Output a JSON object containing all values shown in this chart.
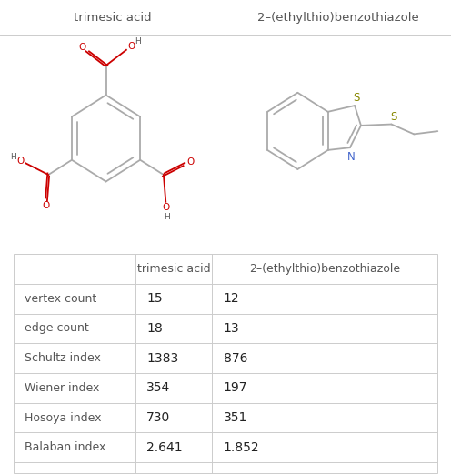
{
  "title_left": "trimesic acid",
  "title_right": "2–(ethylthio)benzothiazole",
  "table_col0": [
    "vertex count",
    "edge count",
    "Schultz index",
    "Wiener index",
    "Hosoya index",
    "Balaban index"
  ],
  "table_col1": [
    "15",
    "18",
    "1383",
    "354",
    "730",
    "2.641"
  ],
  "table_col2": [
    "12",
    "13",
    "876",
    "197",
    "351",
    "1.852"
  ],
  "table_header1": "trimesic acid",
  "table_header2": "2–(ethylthio)benzothiazole",
  "bg_color": "#ffffff",
  "border_color": "#cccccc",
  "text_color": "#555555",
  "bond_color": "#aaaaaa",
  "o_color": "#cc0000",
  "n_color": "#4466cc",
  "s_color": "#888800",
  "title_fontsize": 9.5,
  "table_fontsize": 9.0,
  "value_fontsize": 10.0
}
